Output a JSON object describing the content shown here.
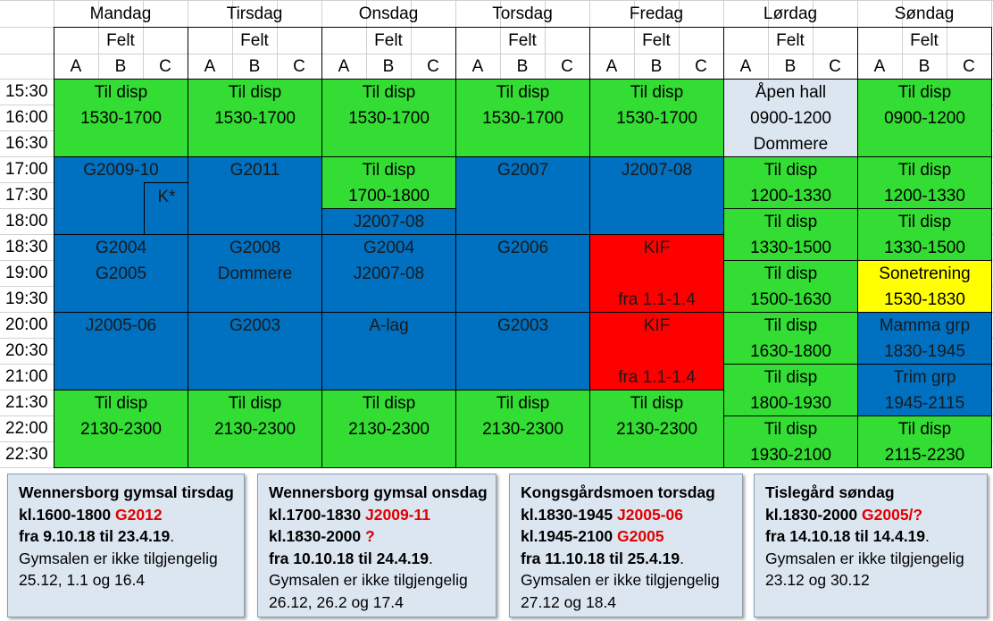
{
  "days": [
    "Mandag",
    "Tirsdag",
    "Onsdag",
    "Torsdag",
    "Fredag",
    "Lørdag",
    "Søndag"
  ],
  "felt_label": "Felt",
  "courts": [
    "A",
    "B",
    "C"
  ],
  "times": [
    "15:30",
    "16:00",
    "16:30",
    "17:00",
    "17:30",
    "18:00",
    "18:30",
    "19:00",
    "19:30",
    "20:00",
    "20:30",
    "21:00",
    "21:30",
    "22:00",
    "22:30"
  ],
  "colors": {
    "free": "#33dd33",
    "booked": "#0070c0",
    "kif": "#ff0000",
    "sone": "#ffff00",
    "open_hall": "#dce6f1"
  },
  "blocks": [
    {
      "day": 0,
      "row": 0,
      "span": 3,
      "color": "g",
      "lines": [
        "Til disp",
        "1530-1700"
      ]
    },
    {
      "day": 1,
      "row": 0,
      "span": 3,
      "color": "g",
      "lines": [
        "Til disp",
        "1530-1700"
      ]
    },
    {
      "day": 2,
      "row": 0,
      "span": 3,
      "color": "g",
      "lines": [
        "Til disp",
        "1530-1700"
      ]
    },
    {
      "day": 3,
      "row": 0,
      "span": 3,
      "color": "g",
      "lines": [
        "Til disp",
        "1530-1700"
      ]
    },
    {
      "day": 4,
      "row": 0,
      "span": 3,
      "color": "g",
      "lines": [
        "Til disp",
        "1530-1700"
      ]
    },
    {
      "day": 5,
      "row": 0,
      "span": 3,
      "color": "lb",
      "lines": [
        "Åpen hall",
        "0900-1200",
        "Dommere"
      ]
    },
    {
      "day": 6,
      "row": 0,
      "span": 3,
      "color": "g",
      "lines": [
        "Til disp",
        "0900-1200"
      ]
    },
    {
      "day": 0,
      "row": 3,
      "span": 3,
      "color": "b",
      "lines": [
        "G2009-10"
      ],
      "sub": "K*"
    },
    {
      "day": 1,
      "row": 3,
      "span": 3,
      "color": "b",
      "lines": [
        "G2011"
      ]
    },
    {
      "day": 2,
      "row": 3,
      "span": 2,
      "color": "g",
      "lines": [
        "Til disp",
        "1700-1800"
      ]
    },
    {
      "day": 2,
      "row": 5,
      "span": 1,
      "color": "b",
      "lines": [
        "J2007-08"
      ]
    },
    {
      "day": 3,
      "row": 3,
      "span": 3,
      "color": "b",
      "lines": [
        "G2007"
      ]
    },
    {
      "day": 4,
      "row": 3,
      "span": 3,
      "color": "b",
      "lines": [
        "J2007-08"
      ]
    },
    {
      "day": 5,
      "row": 3,
      "span": 2,
      "color": "g",
      "lines": [
        "Til disp",
        "1200-1330"
      ]
    },
    {
      "day": 6,
      "row": 3,
      "span": 2,
      "color": "g",
      "lines": [
        "Til disp",
        "1200-1330"
      ]
    },
    {
      "day": 5,
      "row": 5,
      "span": 2,
      "color": "g",
      "lines": [
        "Til disp",
        "1330-1500"
      ]
    },
    {
      "day": 6,
      "row": 5,
      "span": 2,
      "color": "g",
      "lines": [
        "Til disp",
        "1330-1500"
      ]
    },
    {
      "day": 0,
      "row": 6,
      "span": 3,
      "color": "b",
      "lines": [
        "G2004",
        "G2005"
      ]
    },
    {
      "day": 1,
      "row": 6,
      "span": 3,
      "color": "b",
      "lines": [
        "G2008",
        "Dommere"
      ]
    },
    {
      "day": 2,
      "row": 6,
      "span": 3,
      "color": "b",
      "lines": [
        "G2004",
        "J2007-08"
      ]
    },
    {
      "day": 3,
      "row": 6,
      "span": 3,
      "color": "b",
      "lines": [
        "G2006"
      ]
    },
    {
      "day": 4,
      "row": 6,
      "span": 3,
      "color": "r",
      "lines": [
        "KIF",
        "",
        "fra 1.1-1.4"
      ]
    },
    {
      "day": 5,
      "row": 7,
      "span": 2,
      "color": "g",
      "lines": [
        "Til disp",
        "1500-1630"
      ]
    },
    {
      "day": 6,
      "row": 7,
      "span": 2,
      "color": "y",
      "lines": [
        "Sonetrening",
        "1530-1830"
      ]
    },
    {
      "day": 0,
      "row": 9,
      "span": 3,
      "color": "b",
      "lines": [
        "J2005-06"
      ]
    },
    {
      "day": 1,
      "row": 9,
      "span": 3,
      "color": "b",
      "lines": [
        "G2003"
      ]
    },
    {
      "day": 2,
      "row": 9,
      "span": 3,
      "color": "b",
      "lines": [
        "A-lag"
      ]
    },
    {
      "day": 3,
      "row": 9,
      "span": 3,
      "color": "b",
      "lines": [
        "G2003"
      ]
    },
    {
      "day": 4,
      "row": 9,
      "span": 3,
      "color": "r",
      "lines": [
        "KIF",
        "",
        "fra 1.1-1.4"
      ]
    },
    {
      "day": 5,
      "row": 9,
      "span": 2,
      "color": "g",
      "lines": [
        "Til disp",
        "1630-1800"
      ]
    },
    {
      "day": 6,
      "row": 9,
      "span": 2,
      "color": "b",
      "lines": [
        "Mamma grp",
        "1830-1945"
      ]
    },
    {
      "day": 5,
      "row": 11,
      "span": 2,
      "color": "g",
      "lines": [
        "Til disp",
        "1800-1930"
      ]
    },
    {
      "day": 6,
      "row": 11,
      "span": 2,
      "color": "b",
      "lines": [
        "Trim grp",
        "1945-2115"
      ]
    },
    {
      "day": 0,
      "row": 12,
      "span": 3,
      "color": "g",
      "lines": [
        "Til disp",
        "2130-2300"
      ]
    },
    {
      "day": 1,
      "row": 12,
      "span": 3,
      "color": "g",
      "lines": [
        "Til disp",
        "2130-2300"
      ]
    },
    {
      "day": 2,
      "row": 12,
      "span": 3,
      "color": "g",
      "lines": [
        "Til disp",
        "2130-2300"
      ]
    },
    {
      "day": 3,
      "row": 12,
      "span": 3,
      "color": "g",
      "lines": [
        "Til disp",
        "2130-2300"
      ]
    },
    {
      "day": 4,
      "row": 12,
      "span": 3,
      "color": "g",
      "lines": [
        "Til disp",
        "2130-2300"
      ]
    },
    {
      "day": 5,
      "row": 13,
      "span": 2,
      "color": "g",
      "lines": [
        "Til disp",
        "1930-2100"
      ]
    },
    {
      "day": 6,
      "row": 13,
      "span": 2,
      "color": "g",
      "lines": [
        "Til disp",
        "2115-2230"
      ]
    }
  ],
  "notes": [
    {
      "lines": [
        [
          {
            "t": "Wennersborg gymsal tirsdag",
            "s": "bold"
          }
        ],
        [
          {
            "t": "kl.1600-1800 ",
            "s": "bold"
          },
          {
            "t": "G2012",
            "s": "red"
          }
        ],
        [
          {
            "t": "fra 9.10.18 til 23.4.19",
            "s": "bold"
          },
          {
            "t": ".",
            "s": ""
          }
        ],
        [
          {
            "t": "Gymsalen er ikke tilgjengelig",
            "s": ""
          }
        ],
        [
          {
            "t": "25.12, 1.1 og 16.4",
            "s": ""
          }
        ]
      ]
    },
    {
      "lines": [
        [
          {
            "t": "Wennersborg gymsal onsdag",
            "s": "bold"
          }
        ],
        [
          {
            "t": "kl.1700-1830 ",
            "s": "bold"
          },
          {
            "t": "J2009-11",
            "s": "red"
          }
        ],
        [
          {
            "t": "kl.1830-2000 ",
            "s": "bold"
          },
          {
            "t": "?",
            "s": "red"
          }
        ],
        [
          {
            "t": "fra 10.10.18 til 24.4.19",
            "s": "bold"
          },
          {
            "t": ".",
            "s": ""
          }
        ],
        [
          {
            "t": "Gymsalen er ikke tilgjengelig",
            "s": ""
          }
        ],
        [
          {
            "t": "26.12, 26.2 og 17.4",
            "s": ""
          }
        ]
      ]
    },
    {
      "lines": [
        [
          {
            "t": "Kongsgårdsmoen torsdag",
            "s": "bold"
          }
        ],
        [
          {
            "t": "kl.1830-1945 ",
            "s": "bold"
          },
          {
            "t": "J2005-06",
            "s": "red"
          }
        ],
        [
          {
            "t": "kl.1945-2100 ",
            "s": "bold"
          },
          {
            "t": "G2005",
            "s": "red"
          }
        ],
        [
          {
            "t": "fra 11.10.18 til 25.4.19",
            "s": "bold"
          },
          {
            "t": ".",
            "s": ""
          }
        ],
        [
          {
            "t": "Gymsalen er ikke tilgjengelig",
            "s": ""
          }
        ],
        [
          {
            "t": "27.12 og 18.4",
            "s": ""
          }
        ]
      ]
    },
    {
      "lines": [
        [
          {
            "t": "Tislegård søndag",
            "s": "bold"
          }
        ],
        [
          {
            "t": "kl.1830-2000 ",
            "s": "bold"
          },
          {
            "t": "G2005/?",
            "s": "red"
          }
        ],
        [
          {
            "t": "fra 14.10.18 til 14.4.19",
            "s": "bold"
          },
          {
            "t": ".",
            "s": ""
          }
        ],
        [
          {
            "t": "Gymsalen er ikke tilgjengelig",
            "s": ""
          }
        ],
        [
          {
            "t": "23.12 og 30.12",
            "s": ""
          }
        ]
      ]
    }
  ]
}
